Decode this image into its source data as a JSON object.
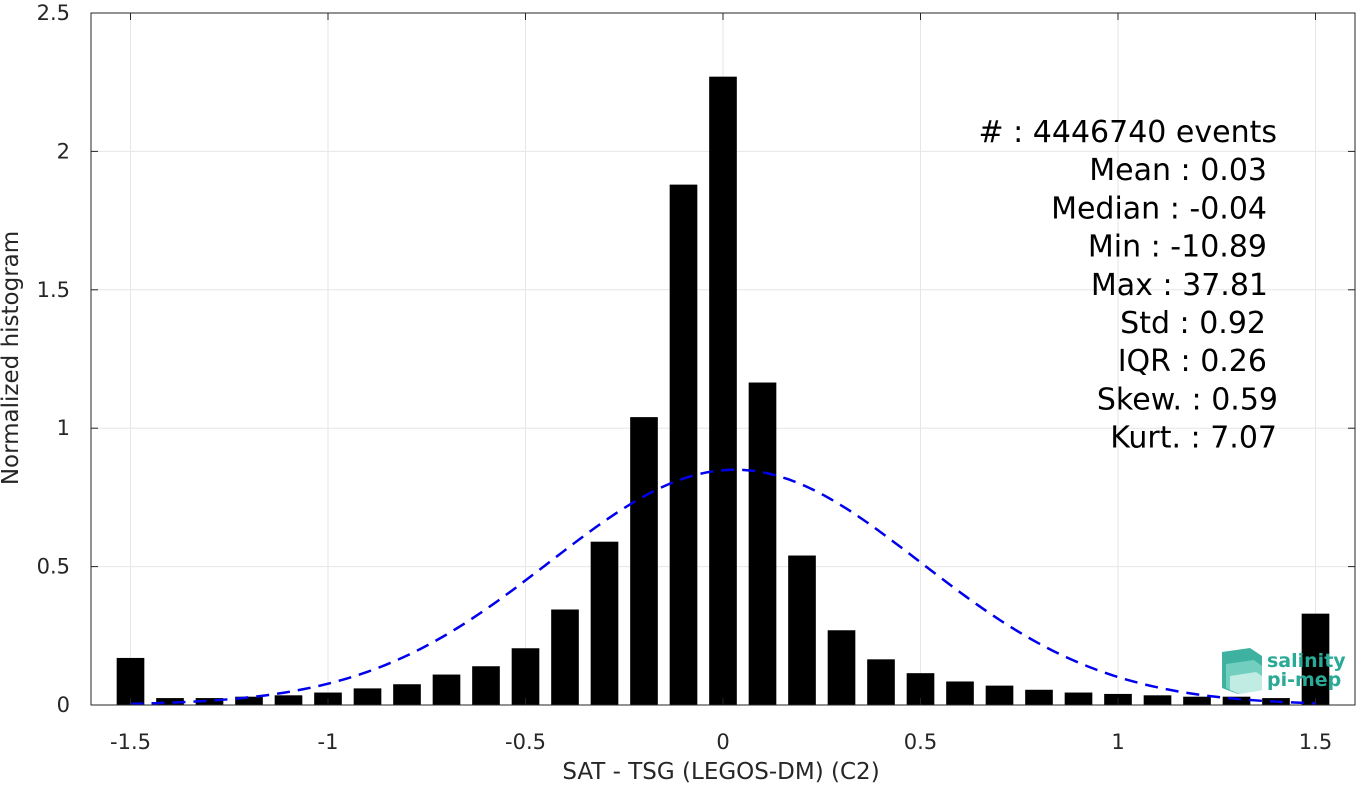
{
  "chart_data": {
    "type": "bar",
    "xlabel": "SAT - TSG (LEGOS-DM) (C2)",
    "ylabel": "Normalized histogram",
    "xlim": [
      -1.6,
      1.6
    ],
    "ylim": [
      0,
      2.5
    ],
    "grid": true,
    "x_ticks": [
      -1.5,
      -1,
      -0.5,
      0,
      0.5,
      1,
      1.5
    ],
    "x_tick_labels": [
      "-1.5",
      "-1",
      "-0.5",
      "0",
      "0.5",
      "1",
      "1.5"
    ],
    "y_ticks": [
      0,
      0.5,
      1,
      1.5,
      2,
      2.5
    ],
    "y_tick_labels": [
      "0",
      "0.5",
      "1",
      "1.5",
      "2",
      "2.5"
    ],
    "bar_color": "#000000",
    "bar_width": 0.07,
    "x": [
      -1.5,
      -1.4,
      -1.3,
      -1.2,
      -1.1,
      -1.0,
      -0.9,
      -0.8,
      -0.7,
      -0.6,
      -0.5,
      -0.4,
      -0.3,
      -0.2,
      -0.1,
      0.0,
      0.1,
      0.2,
      0.3,
      0.4,
      0.5,
      0.6,
      0.7,
      0.8,
      0.9,
      1.0,
      1.1,
      1.2,
      1.3,
      1.4,
      1.5
    ],
    "values": [
      0.17,
      0.025,
      0.025,
      0.03,
      0.035,
      0.045,
      0.06,
      0.075,
      0.11,
      0.14,
      0.205,
      0.345,
      0.59,
      1.04,
      1.88,
      2.27,
      1.165,
      0.54,
      0.27,
      0.165,
      0.115,
      0.085,
      0.07,
      0.055,
      0.045,
      0.04,
      0.035,
      0.03,
      0.03,
      0.025,
      0.33
    ],
    "fit_curve": {
      "style": "dashed",
      "color": "#0000ee",
      "mean": 0.03,
      "std": 0.47,
      "peak": 0.85,
      "x_range": [
        -1.5,
        1.5
      ]
    },
    "annotation": [
      "#  : 4446740 events",
      "Mean : 0.03",
      "Median : -0.04",
      "Min : -10.89",
      "Max : 37.81",
      "Std : 0.92",
      "IQR : 0.26",
      "Skew. : 0.59",
      "Kurt. : 7.07"
    ]
  },
  "logo": {
    "line1": "salinity",
    "line2": "pi-mep",
    "color": "#2aa996"
  }
}
